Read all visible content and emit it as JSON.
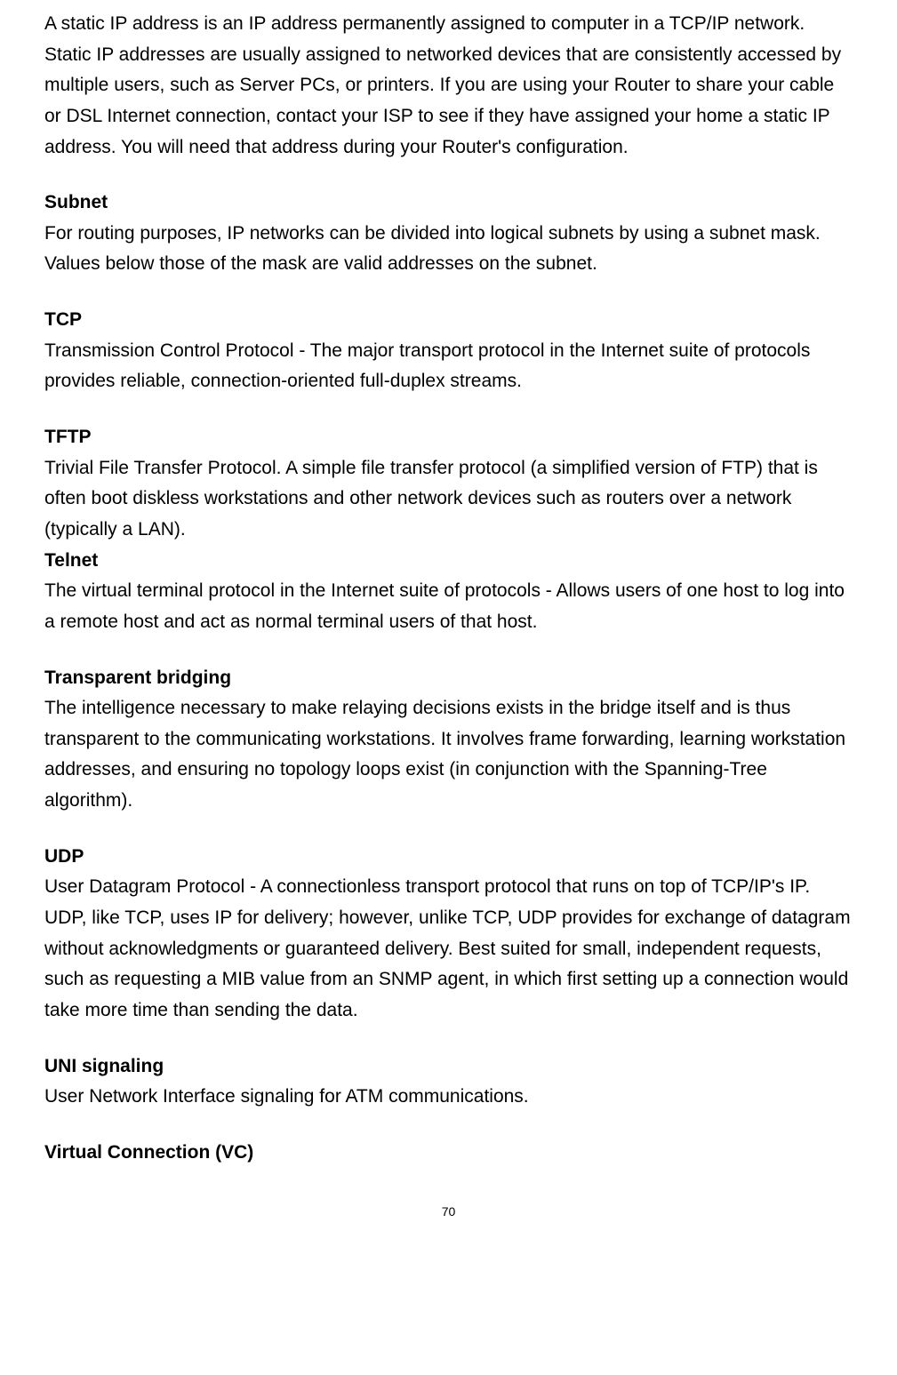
{
  "intro": {
    "body": "A static IP address is an IP address permanently assigned to computer in a TCP/IP network. Static IP addresses are usually assigned to networked devices that are consistently accessed by multiple users, such as Server PCs, or printers. If you are using your Router to share your cable or DSL Internet connection, contact your ISP to see if they have assigned your home a static IP address. You will need that address during your Router's configuration."
  },
  "terms": [
    {
      "title": "Subnet",
      "body": "For routing purposes, IP networks can be divided into logical subnets by using a subnet mask. Values below those of the mask are valid addresses on the subnet."
    },
    {
      "title": "TCP",
      "body": "Transmission Control Protocol - The major transport protocol in the Internet suite of protocols provides reliable, connection-oriented full-duplex streams."
    },
    {
      "title": "TFTP",
      "body": "Trivial File Transfer Protocol. A simple file transfer protocol (a simplified version of FTP) that is often boot diskless workstations and other network devices such as routers over a network (typically a LAN)."
    },
    {
      "title": "Telnet",
      "body": "The virtual terminal protocol in the Internet suite of protocols - Allows users of one host to log into a remote host and act as normal terminal users of that host."
    },
    {
      "title": "Transparent bridging",
      "body": "The intelligence necessary to make relaying decisions exists in the bridge itself and is thus transparent to the communicating workstations. It involves frame forwarding, learning workstation addresses, and ensuring no topology loops exist (in conjunction with the Spanning-Tree algorithm)."
    },
    {
      "title": "UDP",
      "body": "User Datagram Protocol - A connectionless transport protocol that runs on top of TCP/IP's IP. UDP, like TCP, uses IP for delivery; however, unlike TCP, UDP provides for exchange of datagram without acknowledgments or guaranteed delivery. Best suited for small, independent requests, such as requesting a MIB value from an SNMP agent, in which first setting up a connection would take more time than sending the data."
    },
    {
      "title": "UNI signaling",
      "body": "User Network Interface signaling for ATM communications."
    },
    {
      "title": "Virtual Connection (VC)",
      "body": ""
    }
  ],
  "pageNumber": "70",
  "styles": {
    "fontFamily": "Arial",
    "bodyFontSize": 21,
    "titleFontWeight": "bold",
    "lineHeight": 1.65,
    "textColor": "#000000",
    "backgroundColor": "#ffffff",
    "pageNumberFontSize": 14
  }
}
